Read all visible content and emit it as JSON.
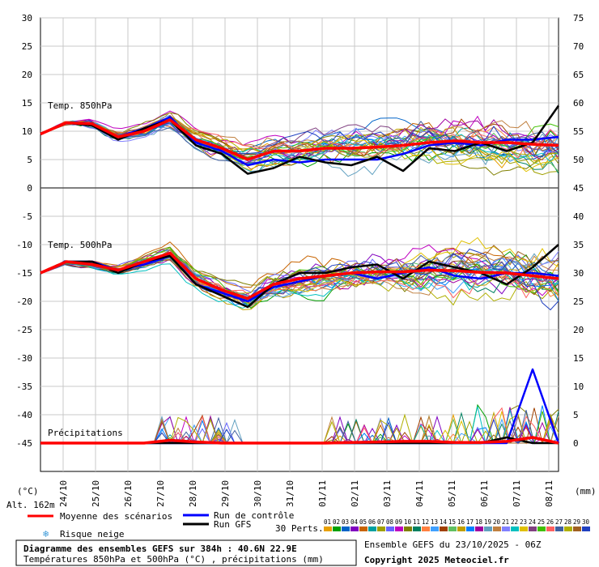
{
  "chart_data": {
    "type": "line",
    "title": "Diagramme des ensembles GEFS sur 384h : 40.6N 22.9E",
    "subtitle": "Températures 850hPa et 500hPa (°C) , précipitations (mm)",
    "run_info": "Ensemble GEFS du 23/10/2025 - 06Z",
    "copyright": "Copyright 2025 Meteociel.fr",
    "altitude": "Alt. 162m",
    "left_unit": "(°C)",
    "right_unit": "(mm)",
    "left_ticks": [
      "30",
      "25",
      "20",
      "15",
      "10",
      "5",
      "0",
      "-5",
      "-10",
      "-15",
      "-20",
      "-25",
      "-30",
      "-35",
      "-40",
      "-45"
    ],
    "right_ticks": [
      "75",
      "70",
      "65",
      "60",
      "55",
      "50",
      "45",
      "40",
      "35",
      "30",
      "25",
      "20",
      "15",
      "10",
      "5",
      "0"
    ],
    "x_labels": [
      "24/10",
      "25/10",
      "26/10",
      "27/10",
      "28/10",
      "29/10",
      "30/10",
      "31/10",
      "01/11",
      "02/11",
      "03/11",
      "04/11",
      "05/11",
      "06/11",
      "07/11",
      "08/11"
    ],
    "panel_labels": {
      "t850": "Temp. 850hPa",
      "t500": "Temp. 500hPa",
      "precip": "Précipitations"
    },
    "legend": {
      "mean": "Moyenne des scénarios",
      "control": "Run de contrôle",
      "gfs": "Run GFS",
      "snow": "Risque neige",
      "perts": "30 Perts."
    },
    "colors": {
      "mean": "#ff0000",
      "control": "#0000ff",
      "gfs": "#000000",
      "grid": "#c8c8c8",
      "members": [
        "#e8a000",
        "#00a000",
        "#0064c8",
        "#8000c0",
        "#c86400",
        "#00a0a0",
        "#a0a000",
        "#6464ff",
        "#c000c0",
        "#808000",
        "#008060",
        "#ff8040",
        "#40a0ff",
        "#a04000",
        "#60c060",
        "#c0a000",
        "#0080ff",
        "#a000a0",
        "#60a0c0",
        "#c08040",
        "#8080ff",
        "#00c0c0",
        "#e0c000",
        "#804080",
        "#40c000",
        "#ff6060",
        "#4060a0",
        "#b0b000",
        "#a06020",
        "#2040c0"
      ]
    },
    "series": [
      {
        "name": "Moyenne des scénarios",
        "panel": "t850",
        "values": [
          9.5,
          11.5,
          11.3,
          9.0,
          10.0,
          12.0,
          8.5,
          7.0,
          5.0,
          6.5,
          6.5,
          7.0,
          7.0,
          7.2,
          7.5,
          8.0,
          8.3,
          8.0,
          8.0,
          7.7,
          7.5
        ]
      },
      {
        "name": "Run de contrôle",
        "panel": "t850",
        "values": [
          9.5,
          11.5,
          11.0,
          9.0,
          10.5,
          12.5,
          8.0,
          6.5,
          4.0,
          5.0,
          4.5,
          5.0,
          5.0,
          5.0,
          6.0,
          7.5,
          8.0,
          7.5,
          8.5,
          8.5,
          9.0
        ]
      },
      {
        "name": "Run GFS",
        "panel": "t850",
        "values": [
          9.5,
          11.5,
          11.0,
          8.5,
          10.5,
          12.0,
          7.5,
          6.0,
          2.5,
          3.5,
          5.5,
          4.5,
          4.0,
          5.5,
          3.0,
          7.0,
          6.5,
          8.0,
          6.5,
          8.0,
          14.5
        ]
      },
      {
        "name": "Moyenne des scénarios",
        "panel": "t500",
        "values": [
          -15,
          -13,
          -13.5,
          -14.5,
          -13,
          -11.5,
          -16,
          -18,
          -19.5,
          -17,
          -16,
          -15.5,
          -15,
          -14.8,
          -14.8,
          -14.5,
          -14.6,
          -14.9,
          -15,
          -15.5,
          -16
        ]
      },
      {
        "name": "Run de contrôle",
        "panel": "t500",
        "values": [
          -15,
          -13,
          -13,
          -14.5,
          -13.5,
          -12,
          -17,
          -18.5,
          -20,
          -17.5,
          -16.5,
          -15.5,
          -15,
          -16,
          -15,
          -14,
          -15.5,
          -16,
          -15,
          -15,
          -15.5
        ]
      },
      {
        "name": "Run GFS",
        "panel": "t500",
        "values": [
          -15,
          -13,
          -13,
          -15,
          -13,
          -12,
          -17,
          -19,
          -21,
          -17,
          -15,
          -15,
          -14,
          -13.5,
          -16,
          -13,
          -14,
          -15,
          -17,
          -14,
          -10
        ]
      },
      {
        "name": "Moyenne des scénarios",
        "panel": "precip",
        "values": [
          0,
          0,
          0,
          0,
          0,
          0.5,
          0.2,
          0,
          0,
          0,
          0,
          0,
          0.1,
          0.2,
          0.3,
          0.3,
          0.1,
          0.1,
          0.3,
          1.0,
          0
        ]
      },
      {
        "name": "Run de contrôle",
        "panel": "precip",
        "values": [
          0,
          0,
          0,
          0,
          0,
          0,
          0,
          0,
          0,
          0,
          0,
          0,
          0,
          0,
          0,
          0,
          0,
          0,
          0,
          13,
          0
        ]
      },
      {
        "name": "Run GFS",
        "panel": "precip",
        "values": [
          0,
          0,
          0,
          0,
          0,
          0,
          0,
          0,
          0,
          0,
          0,
          0,
          0,
          0,
          0,
          0,
          0,
          0,
          1,
          0,
          0
        ]
      }
    ],
    "perts_labels": [
      "01",
      "02",
      "03",
      "04",
      "05",
      "06",
      "07",
      "08",
      "09",
      "10",
      "11",
      "12",
      "13",
      "14",
      "15",
      "16",
      "17",
      "18",
      "19",
      "20",
      "21",
      "22",
      "23",
      "24",
      "25",
      "26",
      "27",
      "28",
      "29",
      "30"
    ]
  }
}
